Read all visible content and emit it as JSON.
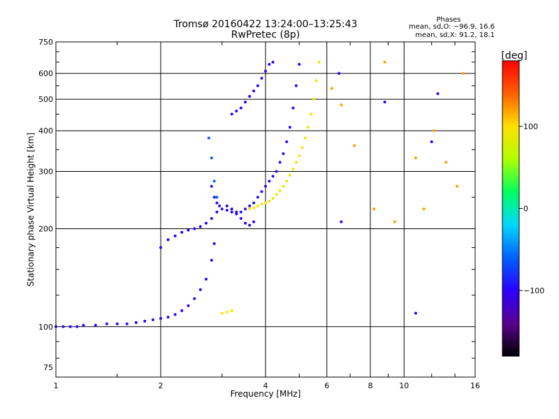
{
  "chart_data": {
    "type": "scatter",
    "title": "Tromsø 20160422 13:24:00–13:25:43",
    "subtitle": "RwPretec (8p)",
    "xlabel": "Frequency [MHz]",
    "ylabel": "Stationary phase Virtual Height [km]",
    "xscale": "log",
    "yscale": "log",
    "xlim": [
      1,
      16
    ],
    "ylim": [
      70,
      750
    ],
    "x_ticks": [
      1,
      2,
      4,
      6,
      8,
      10,
      16
    ],
    "x_tick_labels": [
      "1",
      "2",
      "4",
      "6",
      "8",
      "10",
      "16"
    ],
    "y_ticks": [
      75,
      100,
      200,
      300,
      400,
      500,
      600,
      750
    ],
    "y_tick_labels": [
      "75",
      "100",
      "200",
      "300",
      "400",
      "500",
      "600",
      "750"
    ],
    "grid": true,
    "phase_box": {
      "heading": "Phases",
      "line_o": "mean, sd,O: −96.9, 16.6",
      "line_x": "mean, sd,X:  91.2, 18.1"
    },
    "colorbar": {
      "label": "[deg]",
      "range": [
        -180,
        180
      ],
      "ticks": [
        100,
        0,
        -100
      ],
      "tick_labels": [
        "100",
        "0",
        "−100"
      ],
      "colors": [
        "#000000",
        "#5a0090",
        "#2a00ff",
        "#0060ff",
        "#00d8ff",
        "#00ff60",
        "#b0ff00",
        "#ffe000",
        "#ff6000",
        "#ff0000"
      ]
    },
    "series": [
      {
        "phase": -98,
        "x": [
          1.0,
          1.05,
          1.1,
          1.15,
          1.2,
          1.3,
          1.4,
          1.5,
          1.6,
          1.7,
          1.8,
          1.9,
          2.0,
          2.1,
          2.2,
          2.3,
          2.4,
          2.5,
          2.6,
          2.7,
          2.8,
          2.85
        ],
        "y": [
          100,
          100,
          100,
          100,
          101,
          101,
          102,
          102,
          102,
          103,
          104,
          105,
          106,
          107,
          109,
          112,
          116,
          122,
          130,
          140,
          160,
          180
        ]
      },
      {
        "phase": -100,
        "x": [
          2.0,
          2.1,
          2.2,
          2.3,
          2.4,
          2.5,
          2.6,
          2.7,
          2.8,
          2.9
        ],
        "y": [
          175,
          185,
          190,
          195,
          198,
          200,
          203,
          208,
          215,
          225
        ]
      },
      {
        "phase": -95,
        "x": [
          2.8,
          2.85,
          2.9,
          2.95,
          3.0,
          3.1,
          3.2,
          3.3,
          3.4,
          3.5,
          3.6,
          3.7,
          3.8,
          3.9,
          4.0,
          4.1,
          4.2,
          4.3,
          4.4,
          4.5,
          4.6,
          4.7,
          4.8,
          4.9,
          5.0
        ],
        "y": [
          270,
          250,
          240,
          235,
          230,
          228,
          225,
          222,
          225,
          230,
          235,
          240,
          250,
          260,
          270,
          280,
          290,
          300,
          320,
          340,
          370,
          410,
          470,
          550,
          640
        ]
      },
      {
        "phase": -105,
        "x": [
          3.1,
          3.2,
          3.3,
          3.4,
          3.5,
          3.6,
          3.7
        ],
        "y": [
          235,
          230,
          225,
          215,
          208,
          205,
          210
        ]
      },
      {
        "phase": -98,
        "x": [
          3.2,
          3.3,
          3.4,
          3.5,
          3.6,
          3.7,
          3.8,
          3.9,
          4.0,
          4.1,
          4.2
        ],
        "y": [
          450,
          460,
          470,
          490,
          510,
          530,
          550,
          580,
          610,
          640,
          650
        ]
      },
      {
        "phase": -60,
        "x": [
          2.75,
          2.8,
          2.85,
          2.9
        ],
        "y": [
          380,
          330,
          280,
          250
        ]
      },
      {
        "phase": 95,
        "x": [
          3.6,
          3.7,
          3.8,
          3.9,
          4.0,
          4.1,
          4.2,
          4.3,
          4.4,
          4.5,
          4.6,
          4.7,
          4.8,
          4.9,
          5.0,
          5.1,
          5.2,
          5.3,
          5.4,
          5.5,
          5.6,
          5.7
        ],
        "y": [
          230,
          232,
          235,
          238,
          240,
          243,
          248,
          255,
          262,
          270,
          280,
          292,
          305,
          320,
          335,
          355,
          380,
          410,
          450,
          500,
          570,
          650
        ]
      },
      {
        "phase": 100,
        "x": [
          3.0,
          3.1,
          3.2
        ],
        "y": [
          110,
          111,
          112
        ]
      },
      {
        "phase": 120,
        "x": [
          6.2,
          6.6,
          7.2,
          8.2,
          8.8,
          9.4,
          10.8,
          11.4,
          12.2,
          13.2,
          14.2,
          14.8
        ],
        "y": [
          540,
          480,
          360,
          230,
          650,
          210,
          330,
          230,
          400,
          320,
          270,
          600
        ]
      },
      {
        "phase": -100,
        "x": [
          6.5,
          6.6,
          8.8,
          10.8,
          12.0,
          12.5
        ],
        "y": [
          600,
          210,
          490,
          110,
          370,
          520
        ]
      }
    ]
  }
}
